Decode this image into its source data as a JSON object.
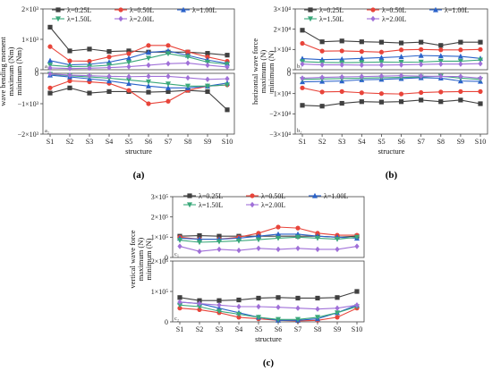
{
  "colors": {
    "0.25L": "#404040",
    "0.50L": "#e8443a",
    "1.00L": "#2a62c9",
    "1.50L": "#3aa87a",
    "2.00L": "#a070d8"
  },
  "chart_data": [
    {
      "id": "a",
      "caption": "(a)",
      "type": "line",
      "categories": [
        "S1",
        "S2",
        "S3",
        "S4",
        "S5",
        "S6",
        "S7",
        "S8",
        "S9",
        "S10"
      ],
      "xlabel": "structure",
      "top": {
        "ylabel": "wave bending moment\nmaximum (Nm)",
        "tag": "a₁",
        "ylim": [
          0,
          2000
        ],
        "ticks": [
          {
            "v": 0,
            "t": "0"
          },
          {
            "v": 1000,
            "t": "1×10³"
          },
          {
            "v": 2000,
            "t": "2×10³"
          }
        ],
        "series": [
          {
            "name": "λ=0.25L",
            "key": "0.25L",
            "marker": "square",
            "values": [
              1400,
              620,
              680,
              600,
              620,
              580,
              580,
              580,
              540,
              480
            ]
          },
          {
            "name": "λ=0.50L",
            "key": "0.50L",
            "marker": "circle",
            "values": [
              760,
              290,
              280,
              420,
              530,
              800,
              800,
              590,
              420,
              280
            ]
          },
          {
            "name": "λ=1.00L",
            "key": "1.00L",
            "marker": "tri-up",
            "values": [
              300,
              160,
              180,
              250,
              380,
              570,
              620,
              470,
              320,
              210
            ]
          },
          {
            "name": "λ=1.50L",
            "key": "1.50L",
            "marker": "tri-down",
            "values": [
              150,
              100,
              110,
              150,
              240,
              380,
              530,
              420,
              250,
              180
            ]
          },
          {
            "name": "λ=2.00L",
            "key": "2.00L",
            "marker": "diamond",
            "values": [
              60,
              40,
              50,
              70,
              100,
              150,
              200,
              220,
              150,
              90
            ]
          }
        ]
      },
      "bottom": {
        "tag": "a₂",
        "ylim": [
          -2000,
          0
        ],
        "ticks": [
          {
            "v": 0,
            "t": "0"
          },
          {
            "v": -1000,
            "t": "−1×10³"
          },
          {
            "v": -2000,
            "t": "−2×10³"
          }
        ],
        "series": [
          {
            "key": "0.25L",
            "marker": "square",
            "values": [
              -650,
              -480,
              -650,
              -600,
              -600,
              -620,
              -600,
              -560,
              -600,
              -1200
            ]
          },
          {
            "key": "0.50L",
            "marker": "circle",
            "values": [
              -480,
              -250,
              -280,
              -330,
              -560,
              -1000,
              -920,
              -560,
              -420,
              -380
            ]
          },
          {
            "key": "1.00L",
            "marker": "tri-up",
            "values": [
              -60,
              -120,
              -180,
              -250,
              -340,
              -420,
              -480,
              -480,
              -420,
              -320
            ]
          },
          {
            "key": "1.50L",
            "marker": "tri-down",
            "values": [
              -30,
              -80,
              -120,
              -160,
              -220,
              -280,
              -350,
              -420,
              -420,
              -380
            ]
          },
          {
            "key": "2.00L",
            "marker": "diamond",
            "values": [
              -20,
              -60,
              -80,
              -100,
              -110,
              -100,
              -100,
              -150,
              -200,
              -180
            ]
          }
        ]
      }
    },
    {
      "id": "b",
      "caption": "(b)",
      "type": "line",
      "categories": [
        "S1",
        "S2",
        "S3",
        "S4",
        "S5",
        "S6",
        "S7",
        "S8",
        "S9",
        "S10"
      ],
      "xlabel": "structure",
      "top": {
        "ylabel": "horizontal wave force\nmaximum (N)",
        "tag": "b₁",
        "ylim": [
          0,
          30000
        ],
        "ticks": [
          {
            "v": 0,
            "t": "0"
          },
          {
            "v": 10000,
            "t": "1×10⁴"
          },
          {
            "v": 20000,
            "t": "2×10⁴"
          },
          {
            "v": 30000,
            "t": "3×10⁴"
          }
        ],
        "series": [
          {
            "name": "λ=0.25L",
            "key": "0.25L",
            "marker": "square",
            "values": [
              19500,
              13800,
              14200,
              13800,
              13600,
              13200,
              13600,
              12000,
              13600,
              13600
            ]
          },
          {
            "name": "λ=0.50L",
            "key": "0.50L",
            "marker": "circle",
            "values": [
              13000,
              9200,
              9300,
              9000,
              8700,
              9800,
              10000,
              9800,
              9800,
              10000
            ]
          },
          {
            "name": "λ=1.00L",
            "key": "1.00L",
            "marker": "tri-up",
            "values": [
              5500,
              5000,
              5200,
              5600,
              6000,
              6400,
              7000,
              6800,
              6600,
              5600
            ]
          },
          {
            "name": "λ=1.50L",
            "key": "1.50L",
            "marker": "tri-down",
            "values": [
              4000,
              3600,
              3500,
              3600,
              3800,
              3700,
              3800,
              4200,
              4200,
              4800
            ]
          },
          {
            "name": "λ=2.00L",
            "key": "2.00L",
            "marker": "diamond",
            "values": [
              2800,
              2400,
              2400,
              2300,
              2300,
              2400,
              2600,
              2800,
              2800,
              3000
            ]
          }
        ]
      },
      "bottom": {
        "ylabel": "minimum (N)",
        "tag": "b₂",
        "ylim": [
          -30000,
          0
        ],
        "ticks": [
          {
            "v": 0,
            "t": "0"
          },
          {
            "v": -10000,
            "t": "−1×10⁴"
          },
          {
            "v": -20000,
            "t": "−2×10⁴"
          },
          {
            "v": -30000,
            "t": "−3×10⁴"
          }
        ],
        "series": [
          {
            "key": "0.25L",
            "marker": "square",
            "values": [
              -15800,
              -16200,
              -14800,
              -14000,
              -14200,
              -14000,
              -13200,
              -14000,
              -13200,
              -15000
            ]
          },
          {
            "key": "0.50L",
            "marker": "circle",
            "values": [
              -7200,
              -9200,
              -9000,
              -9600,
              -10000,
              -10200,
              -9500,
              -9200,
              -9000,
              -9000
            ]
          },
          {
            "key": "1.00L",
            "marker": "tri-up",
            "values": [
              -4200,
              -4000,
              -3800,
              -3200,
              -3000,
              -2600,
              -2200,
              -2400,
              -3800,
              -4000
            ]
          },
          {
            "key": "1.50L",
            "marker": "tri-down",
            "values": [
              -3000,
              -2800,
              -2600,
              -2400,
              -2200,
              -2000,
              -1800,
              -1400,
              -2400,
              -3000
            ]
          },
          {
            "key": "2.00L",
            "marker": "diamond",
            "values": [
              -2400,
              -2000,
              -1800,
              -1600,
              -1400,
              -1200,
              -1400,
              -1500,
              -1600,
              -2400
            ]
          }
        ]
      }
    },
    {
      "id": "c",
      "caption": "(c)",
      "type": "line",
      "categories": [
        "S1",
        "S2",
        "S3",
        "S4",
        "S5",
        "S6",
        "S7",
        "S8",
        "S9",
        "S10"
      ],
      "xlabel": "structure",
      "top": {
        "ylabel": "vertical wave force\nmaximum (N)",
        "tag": "c₁",
        "ylim": [
          0,
          300000
        ],
        "ticks": [
          {
            "v": 0,
            "t": "0"
          },
          {
            "v": 100000,
            "t": "1×10⁵"
          },
          {
            "v": 200000,
            "t": "2×10⁵"
          },
          {
            "v": 300000,
            "t": "3×10⁵"
          }
        ],
        "series": [
          {
            "name": "λ=0.25L",
            "key": "0.25L",
            "marker": "square",
            "values": [
              105000,
              108000,
              105000,
              105000,
              105000,
              105000,
              105000,
              105000,
              100000,
              105000
            ]
          },
          {
            "name": "λ=0.50L",
            "key": "0.50L",
            "marker": "circle",
            "values": [
              100000,
              90000,
              90000,
              100000,
              120000,
              150000,
              145000,
              120000,
              110000,
              110000
            ]
          },
          {
            "name": "λ=1.00L",
            "key": "1.00L",
            "marker": "tri-up",
            "values": [
              95000,
              90000,
              90000,
              95000,
              105000,
              115000,
              115000,
              105000,
              100000,
              95000
            ]
          },
          {
            "name": "λ=1.50L",
            "key": "1.50L",
            "marker": "tri-down",
            "values": [
              85000,
              75000,
              78000,
              82000,
              88000,
              95000,
              100000,
              95000,
              90000,
              100000
            ]
          },
          {
            "name": "λ=2.00L",
            "key": "2.00L",
            "marker": "diamond",
            "values": [
              55000,
              30000,
              40000,
              35000,
              45000,
              40000,
              45000,
              40000,
              40000,
              55000
            ]
          }
        ]
      },
      "bottom": {
        "ylabel": "minimum (N)",
        "tag": "c₂",
        "ylim": [
          0,
          200000
        ],
        "ticks": [
          {
            "v": 0,
            "t": "0"
          },
          {
            "v": 100000,
            "t": "1×10⁵"
          },
          {
            "v": 200000,
            "t": "2×10⁵"
          }
        ],
        "series": [
          {
            "key": "0.25L",
            "marker": "square",
            "values": [
              80000,
              70000,
              70000,
              72000,
              78000,
              80000,
              78000,
              78000,
              80000,
              100000
            ]
          },
          {
            "key": "0.50L",
            "marker": "circle",
            "values": [
              45000,
              40000,
              30000,
              15000,
              10000,
              5000,
              3000,
              5000,
              15000,
              45000
            ]
          },
          {
            "key": "1.00L",
            "marker": "tri-up",
            "values": [
              65000,
              60000,
              45000,
              30000,
              15000,
              5000,
              5000,
              10000,
              30000,
              55000
            ]
          },
          {
            "key": "1.50L",
            "marker": "tri-down",
            "values": [
              55000,
              50000,
              35000,
              25000,
              15000,
              8000,
              8000,
              15000,
              30000,
              50000
            ]
          },
          {
            "key": "2.00L",
            "marker": "diamond",
            "values": [
              65000,
              60000,
              55000,
              50000,
              50000,
              48000,
              45000,
              42000,
              45000,
              55000
            ]
          }
        ]
      }
    }
  ]
}
